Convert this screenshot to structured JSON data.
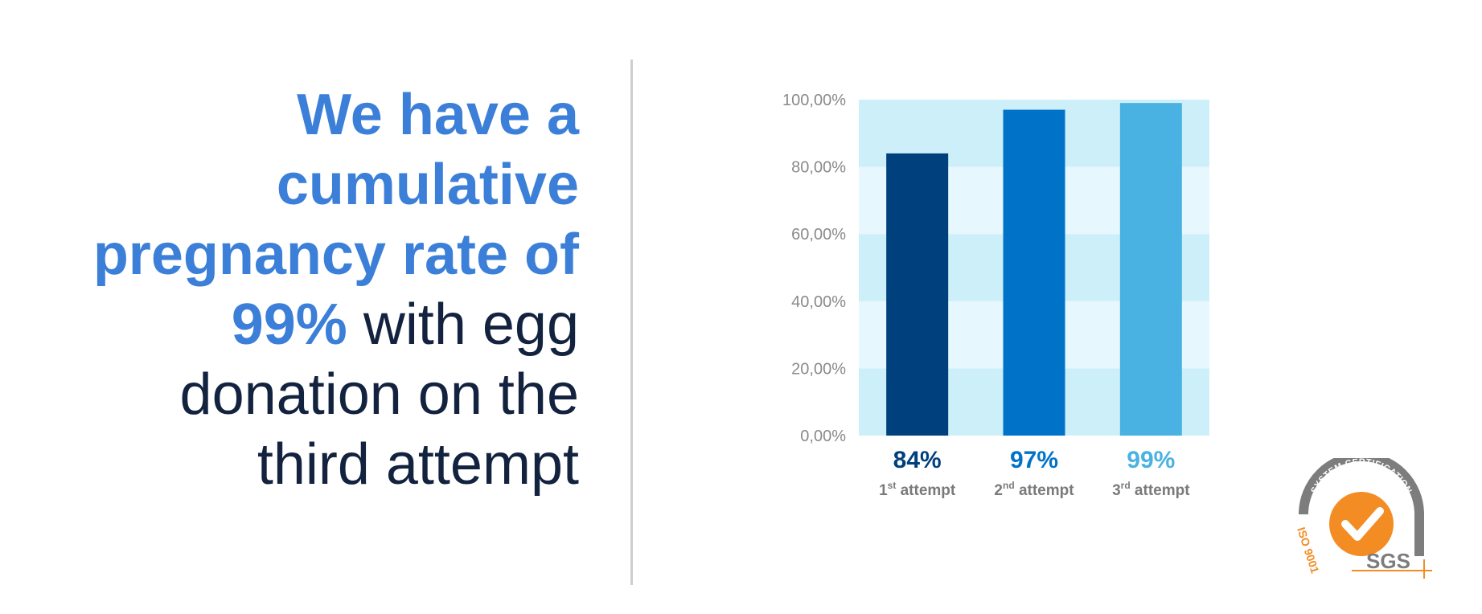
{
  "headline": {
    "line1": "We have a",
    "line2": "cumulative",
    "line3": "pregnancy rate of",
    "line4_highlight": "99%",
    "line4_rest": " with egg",
    "line5": "donation on the",
    "line6": "third attempt"
  },
  "colors": {
    "headline_accent": "#3b7fd8",
    "headline_text": "#13233f",
    "band_dark": "#cdeffa",
    "band_light": "#e6f7fd",
    "bar1": "#00417d",
    "bar2": "#0073c9",
    "bar3": "#49b2e3",
    "logo_orange": "#f28c23",
    "logo_gray": "#7d7d7d"
  },
  "chart_data": {
    "type": "bar",
    "categories": [
      {
        "num": "1",
        "sup": "st",
        "rest": " attempt"
      },
      {
        "num": "2",
        "sup": "nd",
        "rest": " attempt"
      },
      {
        "num": "3",
        "sup": "rd",
        "rest": " attempt"
      }
    ],
    "values": [
      84,
      97,
      99
    ],
    "value_labels": [
      "84%",
      "97%",
      "99%"
    ],
    "y_ticks": [
      "0,00%",
      "20,00%",
      "40,00%",
      "60,00%",
      "80,00%",
      "100,00%"
    ],
    "ylim": [
      0,
      100
    ],
    "grid": "alternating horizontal bands",
    "legend": "none"
  },
  "logo": {
    "top_arc_text": "SYSTEM CERTIFICATION",
    "side_text": "ISO 9001",
    "brand_text": "SGS",
    "icon": "checkmark-icon"
  }
}
